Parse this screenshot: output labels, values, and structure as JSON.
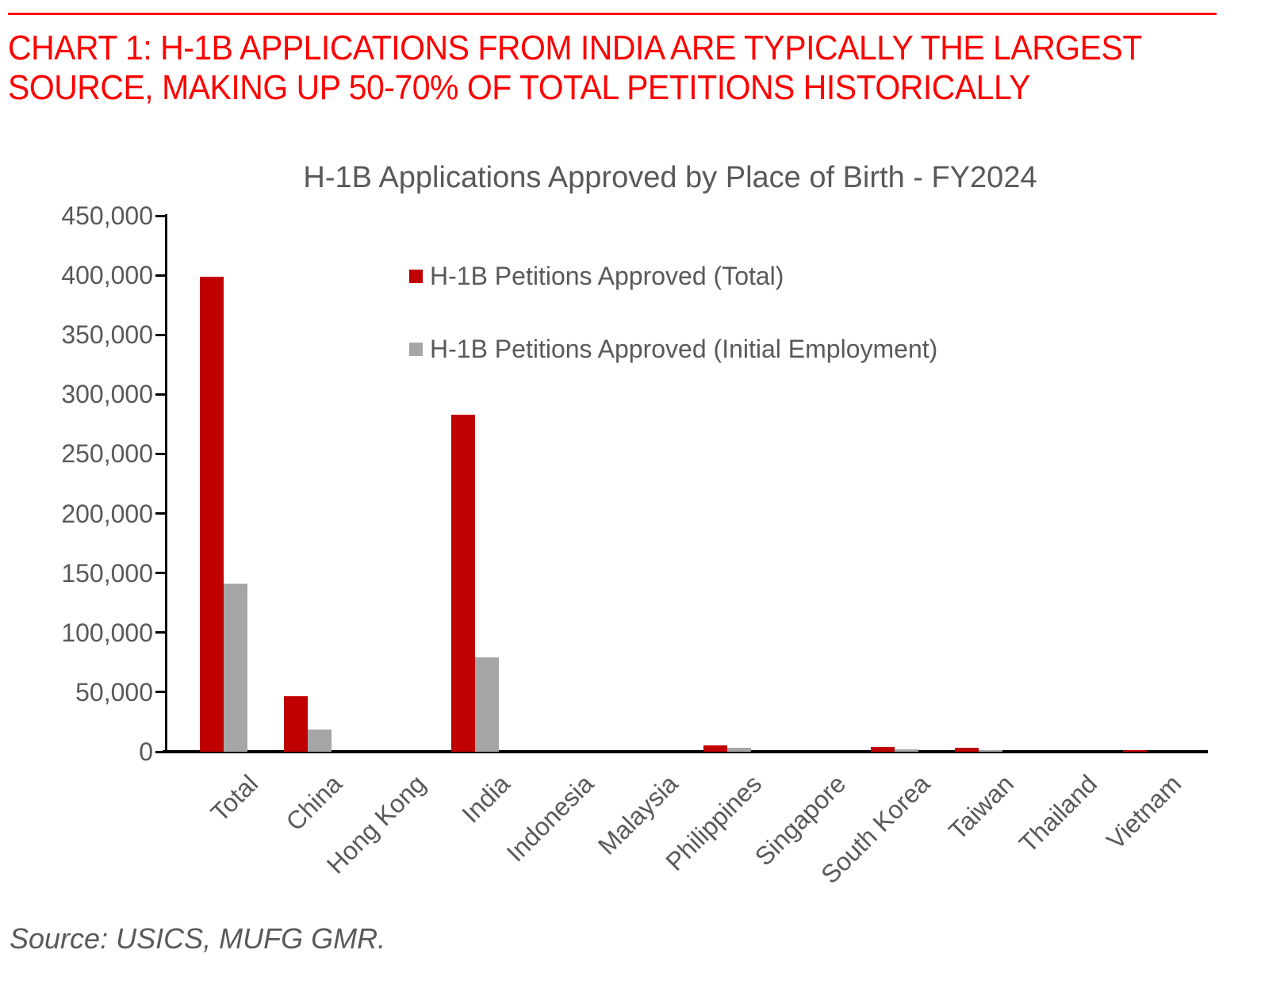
{
  "header": {
    "title_line1": "CHART 1: H-1B APPLICATIONS FROM INDIA ARE TYPICALLY THE LARGEST",
    "title_line2": "SOURCE, MAKING UP 50-70% OF TOTAL PETITIONS HISTORICALLY"
  },
  "colors": {
    "header_red": "#FD0000",
    "bar_red": "#C00000",
    "bar_gray": "#A6A6A6",
    "text_gray": "#595959",
    "axis_black": "#000000"
  },
  "chart_data": {
    "type": "bar",
    "title": "H-1B Applications Approved by Place of Birth - FY2024",
    "categories": [
      "Total",
      "China",
      "Hong Kong",
      "India",
      "Indonesia",
      "Malaysia",
      "Philippines",
      "Singapore",
      "South Korea",
      "Taiwan",
      "Thailand",
      "Vietnam"
    ],
    "series": [
      {
        "name": "H-1B Petitions Approved (Total)",
        "color": "#C00000",
        "values": [
          399000,
          46500,
          0,
          283000,
          0,
          0,
          5000,
          0,
          4000,
          3000,
          0,
          1000
        ]
      },
      {
        "name": "H-1B Petitions Approved (Initial Employment)",
        "color": "#A6A6A6",
        "values": [
          141000,
          18500,
          0,
          79000,
          0,
          0,
          3000,
          0,
          2000,
          1500,
          0,
          0
        ]
      }
    ],
    "xlabel": "",
    "ylabel": "",
    "ylim": [
      0,
      450000
    ],
    "ytick_step": 50000,
    "ytick_values": [
      0,
      50000,
      100000,
      150000,
      200000,
      250000,
      300000,
      350000,
      400000,
      450000
    ],
    "ytick_labels": [
      "0",
      "50,000",
      "100,000",
      "150,000",
      "200,000",
      "250,000",
      "300,000",
      "350,000",
      "400,000",
      "450,000"
    ],
    "xtick_rotation": 45,
    "grid": false,
    "legend_position": "upper-center-inside"
  },
  "source_note": "Source: USICS, MUFG GMR."
}
